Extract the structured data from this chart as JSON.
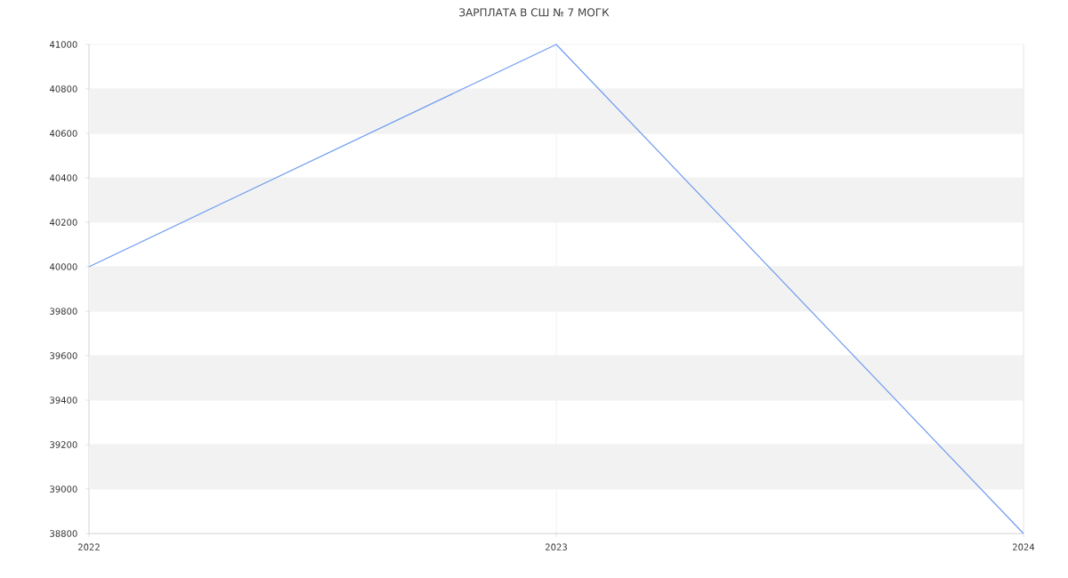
{
  "chart_data": {
    "type": "line",
    "title": "ЗАРПЛАТА В СШ № 7 МОГК",
    "categories": [
      "2022",
      "2023",
      "2024"
    ],
    "series": [
      {
        "color": "#6f9cf0",
        "values": [
          40000,
          41000,
          38800
        ]
      }
    ],
    "ylim": [
      38800,
      41000
    ],
    "yticks": [
      38800,
      39000,
      39200,
      39400,
      39600,
      39800,
      40000,
      40200,
      40400,
      40600,
      40800,
      41000
    ],
    "grid": true,
    "marker": "none",
    "line_style": "solid"
  }
}
